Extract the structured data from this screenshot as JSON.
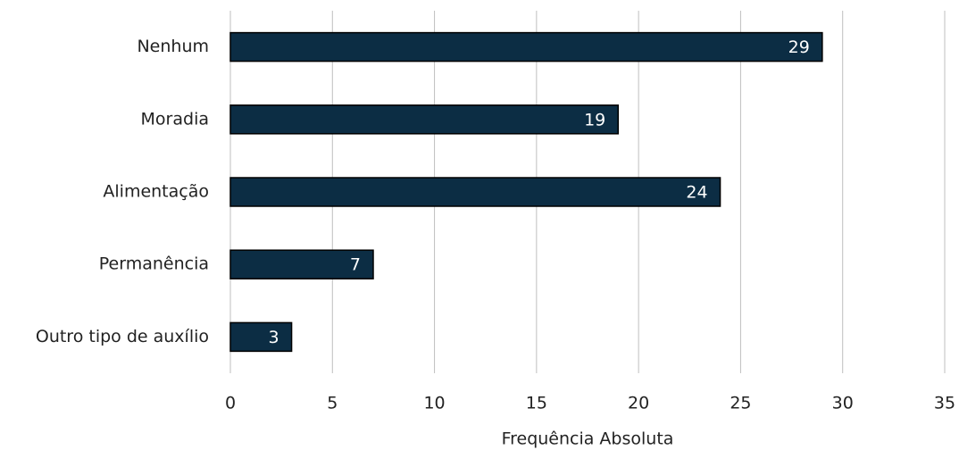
{
  "chart_data": {
    "type": "bar",
    "orientation": "horizontal",
    "categories": [
      "Nenhum",
      "Moradia",
      "Alimentação",
      "Permanência",
      "Outro tipo de auxílio"
    ],
    "values": [
      29,
      19,
      24,
      7,
      3
    ],
    "color": "#0c2d44",
    "x_label": "Frequência Absoluta",
    "xlim": [
      0,
      35
    ],
    "xticks": [
      0,
      5,
      10,
      15,
      20,
      25,
      30,
      35
    ],
    "grid": true
  }
}
